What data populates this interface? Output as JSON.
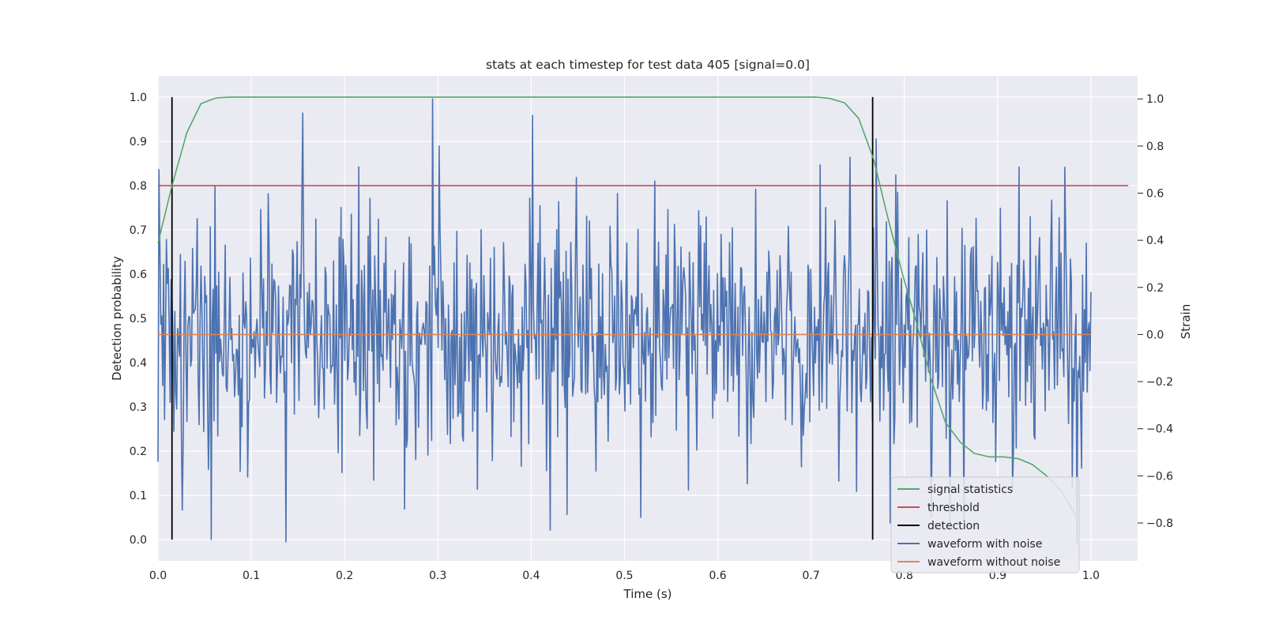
{
  "chart_data": {
    "type": "line",
    "title": "stats at each timestep for test data 405 [signal=0.0]",
    "xlabel": "Time (s)",
    "ylabel_left": "Detection probability",
    "ylabel_right": "Strain",
    "xlim": [
      0.0,
      1.05
    ],
    "ylim_left": [
      -0.048,
      1.048
    ],
    "ylim_right": [
      -0.961,
      1.098
    ],
    "x_ticks": [
      "0.0",
      "0.1",
      "0.2",
      "0.3",
      "0.4",
      "0.5",
      "0.6",
      "0.7",
      "0.8",
      "0.9",
      "1.0"
    ],
    "y_left_ticks": [
      "0.0",
      "0.1",
      "0.2",
      "0.3",
      "0.4",
      "0.5",
      "0.6",
      "0.7",
      "0.8",
      "0.9",
      "1.0"
    ],
    "y_right_ticks": [
      "−0.8",
      "−0.6",
      "−0.4",
      "−0.2",
      "0.0",
      "0.2",
      "0.4",
      "0.6",
      "0.8",
      "1.0"
    ],
    "grid": true,
    "legend_position": "bottom-right",
    "series": [
      {
        "name": "signal statistics",
        "color": "#55a868",
        "axis": "left",
        "x": [
          0.0,
          0.015,
          0.031,
          0.046,
          0.062,
          0.077,
          0.092,
          0.3,
          0.5,
          0.705,
          0.72,
          0.736,
          0.751,
          0.767,
          0.782,
          0.798,
          0.813,
          0.829,
          0.844,
          0.86,
          0.875,
          0.891,
          0.906,
          0.922,
          0.937,
          0.952,
          0.968,
          0.985
        ],
        "values": [
          0.67,
          0.8,
          0.92,
          0.985,
          0.998,
          1.0,
          1.0,
          1.0,
          1.0,
          1.0,
          0.997,
          0.987,
          0.952,
          0.86,
          0.73,
          0.6,
          0.49,
          0.36,
          0.265,
          0.22,
          0.195,
          0.187,
          0.187,
          0.183,
          0.17,
          0.145,
          0.11,
          0.05
        ]
      },
      {
        "name": "threshold",
        "color": "#c44e52",
        "axis": "left",
        "x": [
          0.0,
          1.04
        ],
        "values": [
          0.8,
          0.8
        ]
      },
      {
        "name": "detection",
        "color": "#000000",
        "axis": "left",
        "segments": [
          {
            "x": 0.015,
            "y": [
              0.0,
              1.0
            ]
          },
          {
            "x": 0.766,
            "y": [
              0.0,
              1.0
            ]
          }
        ]
      },
      {
        "name": "waveform with noise",
        "color": "#4c72b0",
        "axis": "right",
        "x_range": [
          0.0,
          1.0
        ],
        "points": 1000,
        "amplitude_std": 0.26,
        "peaks": [
          {
            "x": 0.001,
            "y": 0.7
          },
          {
            "x": 0.057,
            "y": -0.87
          },
          {
            "x": 0.061,
            "y": 0.63
          },
          {
            "x": 0.137,
            "y": -0.88
          },
          {
            "x": 0.155,
            "y": 0.94
          },
          {
            "x": 0.294,
            "y": 1.0
          },
          {
            "x": 0.401,
            "y": 0.93
          },
          {
            "x": 0.42,
            "y": -0.83
          },
          {
            "x": 0.569,
            "y": -0.66
          },
          {
            "x": 0.71,
            "y": 0.72
          },
          {
            "x": 0.77,
            "y": 0.83
          },
          {
            "x": 0.972,
            "y": 0.71
          },
          {
            "x": 0.985,
            "y": -0.89
          }
        ]
      },
      {
        "name": "waveform without noise",
        "color": "#dd8452",
        "axis": "right",
        "x": [
          0.0,
          1.0
        ],
        "values": [
          0.0,
          0.0
        ]
      }
    ]
  }
}
